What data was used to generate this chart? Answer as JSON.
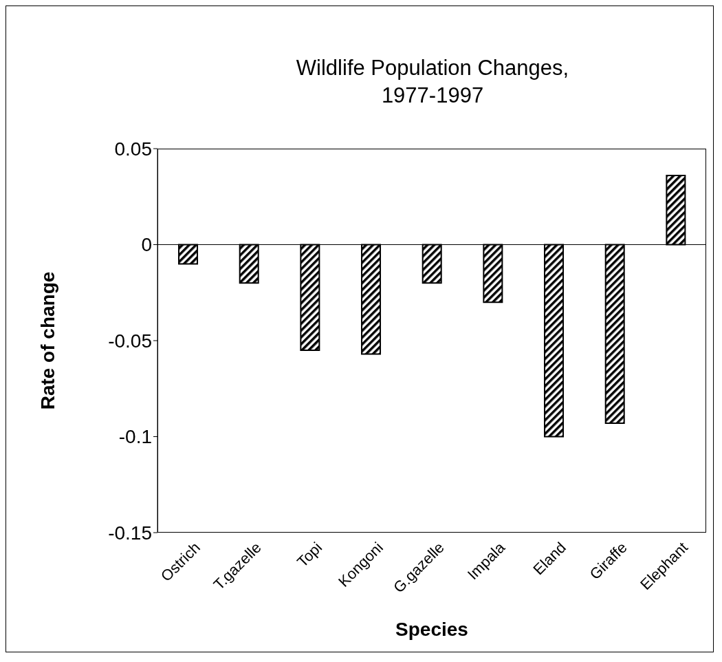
{
  "chart_data": {
    "type": "bar",
    "title": "Wildlife Population Changes, 1977-1997",
    "xlabel": "Species",
    "ylabel": "Rate of change",
    "categories": [
      "Ostrich",
      "T.gazelle",
      "Topi",
      "Kongoni",
      "G.gazelle",
      "Impala",
      "Eland",
      "Giraffe",
      "Elephant"
    ],
    "values": [
      -0.01,
      -0.02,
      -0.055,
      -0.057,
      -0.02,
      -0.03,
      -0.1,
      -0.093,
      0.036
    ],
    "color": "#000000",
    "ylim": [
      -0.15,
      0.05
    ],
    "yticks": [
      -0.15,
      -0.1,
      -0.05,
      0,
      0.05
    ],
    "legend": false
  }
}
